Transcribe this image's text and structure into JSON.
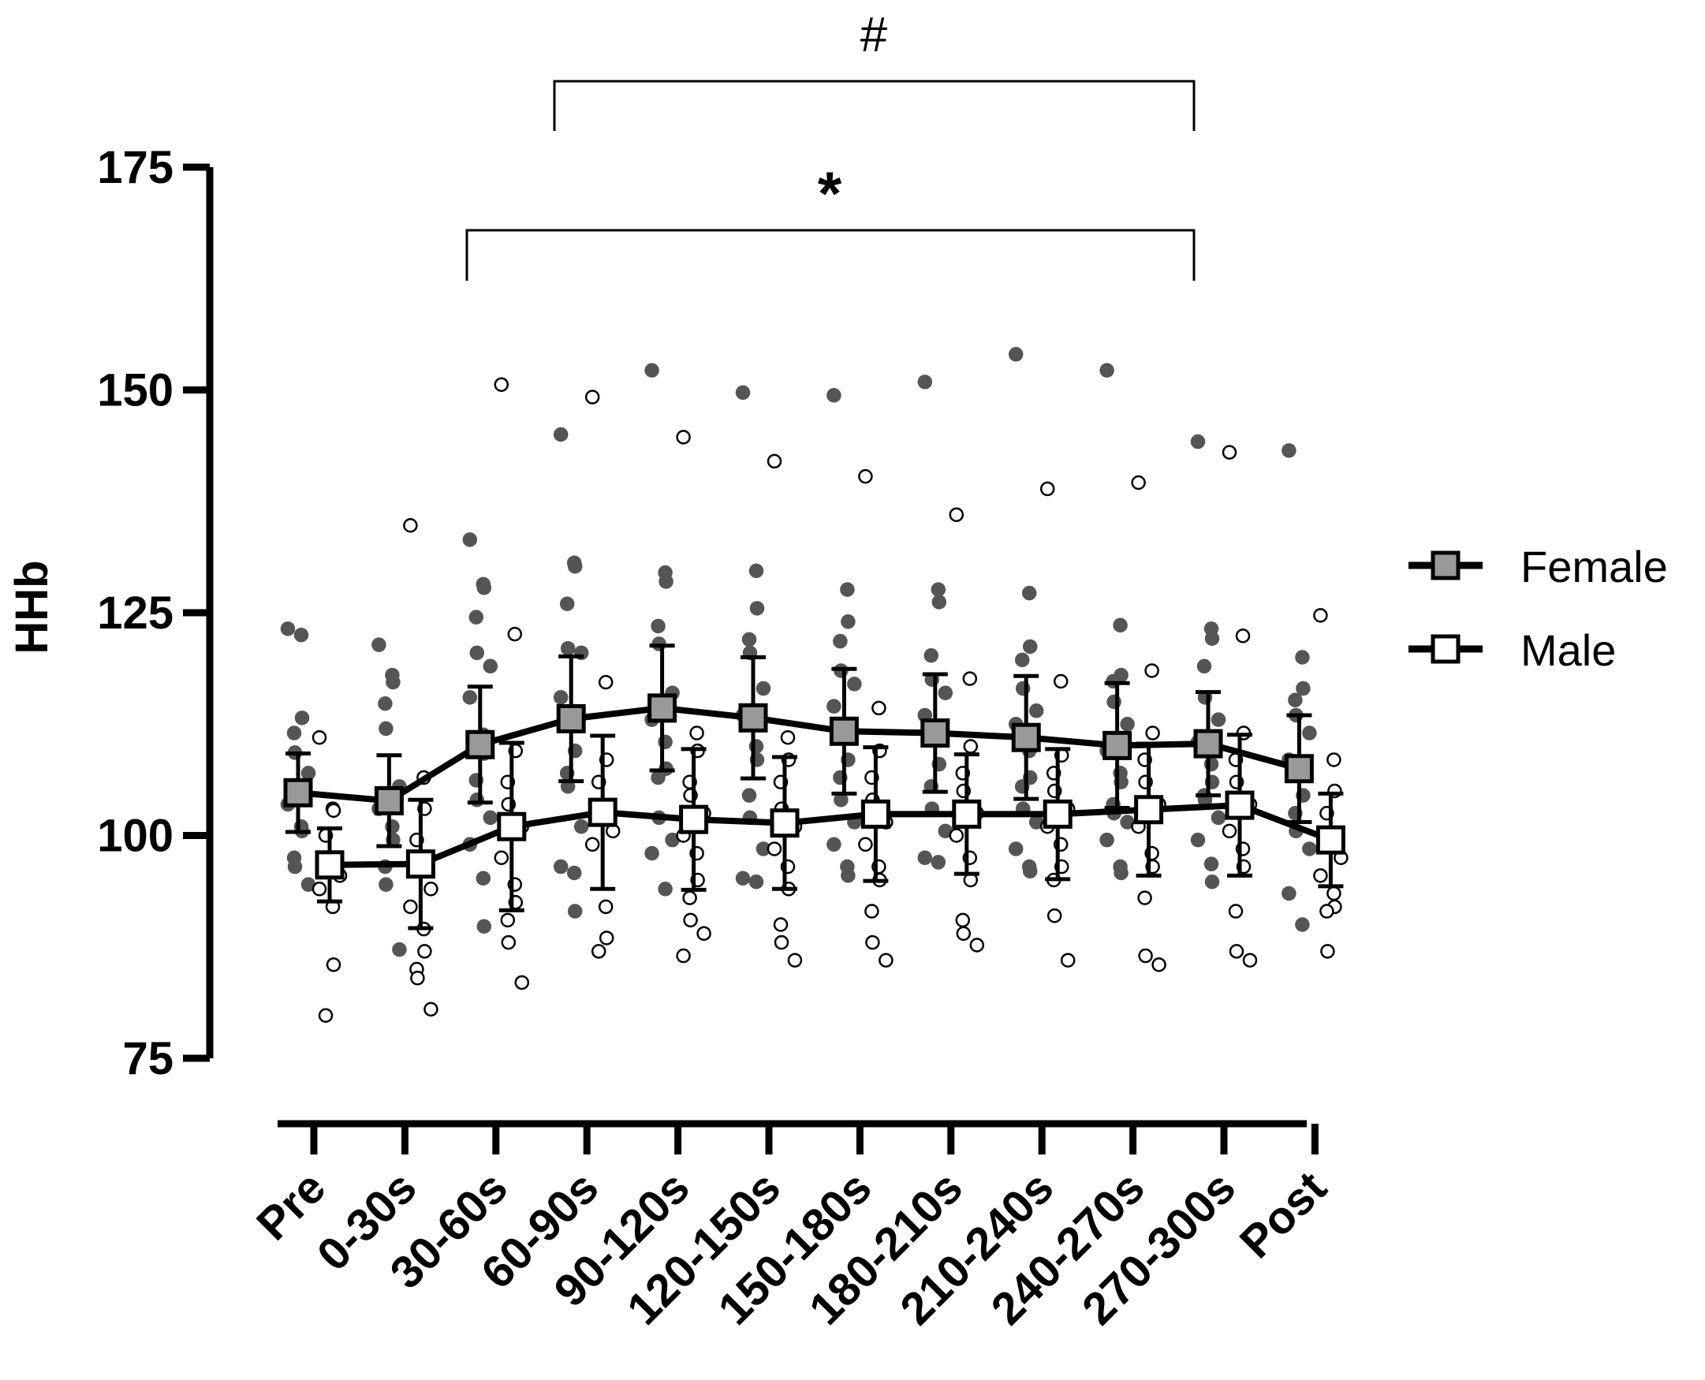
{
  "chart_data": {
    "type": "line",
    "title": "",
    "xlabel": "",
    "ylabel": "HHb",
    "ylim": [
      75,
      175
    ],
    "yticks": [
      75,
      100,
      125,
      150,
      175
    ],
    "categories": [
      "Pre",
      "0-30s",
      "30-60s",
      "60-90s",
      "90-120s",
      "120-150s",
      "150-180s",
      "180-210s",
      "210-240s",
      "240-270s",
      "270-300s",
      "Post"
    ],
    "grid": false,
    "legend_position": "right",
    "colors": {
      "female_fill": "#999999",
      "male_fill": "#ffffff",
      "female_point": "#555555",
      "stroke": "#000000"
    },
    "series": [
      {
        "name": "Female",
        "means": [
          104.8,
          103.9,
          110.2,
          113.1,
          114.3,
          113.2,
          111.7,
          111.5,
          111.0,
          110.1,
          110.3,
          107.5
        ],
        "sd": [
          4.4,
          5.1,
          6.5,
          7.0,
          7.0,
          6.8,
          7.0,
          6.6,
          6.9,
          7.0,
          5.8,
          6.0
        ],
        "points": [
          [
            123.2,
            122.5,
            113.2,
            111.5,
            109.3,
            107.0,
            103.5,
            101.0,
            100.5,
            97.5,
            96.5,
            94.5
          ],
          [
            121.4,
            118.0,
            117.2,
            114.8,
            112.0,
            105.5,
            103.0,
            101.0,
            99.5,
            96.5,
            94.5,
            87.2
          ],
          [
            133.2,
            128.2,
            127.8,
            124.5,
            120.5,
            119.0,
            115.5,
            111.3,
            109.2,
            106.2,
            104.0,
            102.0,
            99.0,
            95.2,
            89.8
          ],
          [
            145.0,
            130.6,
            130.2,
            126.0,
            121.0,
            120.5,
            115.5,
            113.0,
            109.5,
            107.0,
            105.5,
            101.0,
            96.5,
            95.8,
            91.5
          ],
          [
            152.2,
            129.5,
            128.5,
            123.5,
            121.5,
            116.0,
            113.0,
            110.5,
            107.5,
            106.5,
            102.0,
            99.5,
            98.0,
            94.0
          ],
          [
            149.7,
            129.7,
            125.5,
            122.0,
            120.5,
            116.5,
            113.5,
            110.0,
            108.5,
            104.5,
            102.0,
            98.5,
            95.2,
            94.8
          ],
          [
            149.4,
            127.6,
            124.0,
            121.8,
            118.5,
            117.0,
            114.5,
            111.0,
            108.5,
            106.5,
            104.0,
            101.5,
            99.0,
            96.5,
            95.5
          ],
          [
            150.9,
            127.6,
            126.2,
            120.2,
            117.5,
            116.0,
            113.5,
            111.0,
            108.0,
            105.5,
            103.0,
            100.5,
            97.5,
            97.0
          ],
          [
            154.0,
            127.2,
            121.2,
            119.7,
            116.5,
            114.0,
            112.5,
            109.5,
            106.5,
            105.5,
            103.0,
            101.5,
            98.5,
            96.5,
            96.0
          ],
          [
            152.2,
            123.6,
            118.0,
            117.3,
            115.0,
            112.5,
            109.5,
            107.0,
            106.0,
            103.5,
            102.5,
            101.5,
            99.5,
            96.5,
            95.8
          ],
          [
            144.2,
            123.2,
            122.1,
            119.0,
            115.5,
            113.0,
            110.5,
            108.0,
            106.0,
            104.5,
            104.0,
            102.0,
            99.5,
            96.8,
            94.8
          ],
          [
            143.2,
            120.0,
            116.5,
            115.2,
            113.5,
            111.5,
            108.5,
            107.0,
            104.5,
            102.5,
            100.5,
            98.5,
            93.5,
            90.0
          ]
        ]
      },
      {
        "name": "Male",
        "means": [
          96.7,
          96.8,
          101.0,
          102.6,
          101.8,
          101.4,
          102.4,
          102.4,
          102.4,
          102.9,
          103.4,
          99.5
        ],
        "sd": [
          4.1,
          7.2,
          9.4,
          8.6,
          7.9,
          7.4,
          7.5,
          6.7,
          7.3,
          7.4,
          7.9,
          5.2
        ],
        "points": [
          [
            111.0,
            103.0,
            102.8,
            100.0,
            97.0,
            95.5,
            94.0,
            92.0,
            85.5,
            79.8
          ],
          [
            134.8,
            106.5,
            103.0,
            99.5,
            96.0,
            94.0,
            92.0,
            89.5,
            87.0,
            85.0,
            84.0,
            80.5
          ],
          [
            150.6,
            122.6,
            109.5,
            106.0,
            103.5,
            101.0,
            97.5,
            94.5,
            92.5,
            90.5,
            88.0,
            83.5
          ],
          [
            149.2,
            117.2,
            108.5,
            106.0,
            103.0,
            100.5,
            99.0,
            92.0,
            88.5,
            87.0
          ],
          [
            144.7,
            111.5,
            109.5,
            106.0,
            104.5,
            102.5,
            100.0,
            98.0,
            95.0,
            93.0,
            90.5,
            89.0,
            86.5
          ],
          [
            142.0,
            111.0,
            108.5,
            106.0,
            103.0,
            101.0,
            98.5,
            96.5,
            94.0,
            90.0,
            88.0,
            86.0
          ],
          [
            140.3,
            114.3,
            109.5,
            106.5,
            104.0,
            101.5,
            99.0,
            96.5,
            95.0,
            91.5,
            88.0,
            86.0
          ],
          [
            136.0,
            117.6,
            110.0,
            107.0,
            105.0,
            102.5,
            100.0,
            97.5,
            95.0,
            90.5,
            89.0,
            87.7
          ],
          [
            138.9,
            117.3,
            109.0,
            107.0,
            105.0,
            103.0,
            101.0,
            99.0,
            96.5,
            95.0,
            91.0,
            86.0
          ],
          [
            139.6,
            118.5,
            111.5,
            108.5,
            106.0,
            103.5,
            101.0,
            98.0,
            96.5,
            93.0,
            86.5,
            85.5
          ],
          [
            143.0,
            122.4,
            111.5,
            108.5,
            106.0,
            103.5,
            100.5,
            98.5,
            96.5,
            91.5,
            87.0,
            86.0
          ],
          [
            124.7,
            108.5,
            105.0,
            102.5,
            100.0,
            97.5,
            95.5,
            93.5,
            92.0,
            91.5,
            87.0
          ]
        ]
      }
    ],
    "annotations": [
      {
        "label": "#",
        "from": "60-90s",
        "to": "270-300s"
      },
      {
        "label": "*",
        "from": "30-60s",
        "to": "270-300s"
      }
    ]
  }
}
